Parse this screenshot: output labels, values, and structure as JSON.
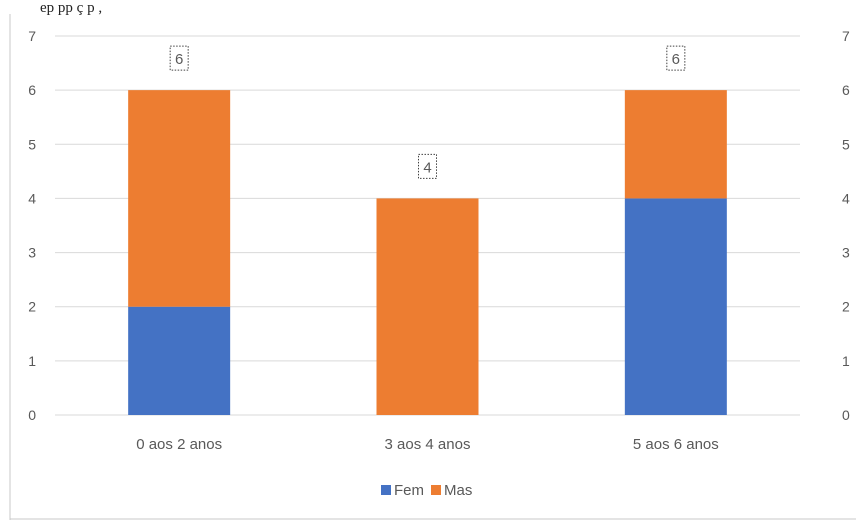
{
  "header_fragment": "ep                 pp            ç    p        ,",
  "chart_data": {
    "type": "bar",
    "stacked": true,
    "categories": [
      "0 aos 2 anos",
      "3 aos 4 anos",
      "5 aos 6 anos"
    ],
    "series": [
      {
        "name": "Fem",
        "values": [
          2,
          0,
          4
        ],
        "color": "#4472c4"
      },
      {
        "name": "Mas",
        "values": [
          4,
          4,
          2
        ],
        "color": "#ed7d31"
      }
    ],
    "totals": [
      6,
      4,
      6
    ],
    "ylim": [
      0,
      7
    ],
    "yticks": [
      0,
      1,
      2,
      3,
      4,
      5,
      6,
      7
    ],
    "secondary_yticks": [
      "0",
      "1",
      "2",
      "3",
      "4",
      "5",
      "6",
      "7"
    ],
    "grid": true,
    "legend_position": "bottom",
    "title": "",
    "xlabel": "",
    "ylabel": ""
  }
}
